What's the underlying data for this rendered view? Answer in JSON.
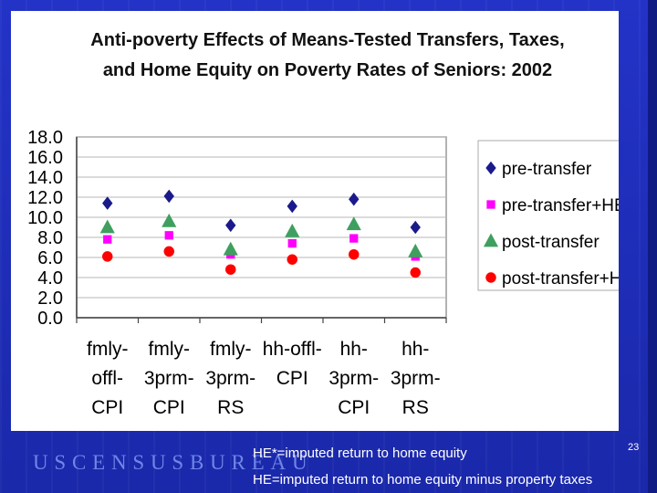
{
  "slide": {
    "footer_logo": "USCENSUSBUREAU",
    "note_he_star": "HE*=imputed return to home equity",
    "note_he": "HE=imputed return to home equity minus property taxes",
    "slide_number": "23"
  },
  "chart_data": {
    "type": "scatter",
    "title_lines": [
      "Anti-poverty Effects of Means-Tested Transfers, Taxes,",
      "and Home Equity on Poverty Rates of Seniors: 2002"
    ],
    "categories": [
      [
        "fmly-",
        "offl-",
        "CPI"
      ],
      [
        "fmly-",
        "3prm-",
        "CPI"
      ],
      [
        "fmly-",
        "3prm-",
        "RS"
      ],
      [
        "hh-offl-",
        "CPI"
      ],
      [
        "hh-",
        "3prm-",
        "CPI"
      ],
      [
        "hh-",
        "3prm-",
        "RS"
      ]
    ],
    "y_ticks": [
      "0.0",
      "2.0",
      "4.0",
      "6.0",
      "8.0",
      "10.0",
      "12.0",
      "14.0",
      "16.0",
      "18.0"
    ],
    "ylim": [
      0,
      18
    ],
    "grid": true,
    "legend_position": "right",
    "series": [
      {
        "name": "pre-transfer",
        "marker": "diamond",
        "color": "#1a1a8c",
        "values": [
          11.4,
          12.1,
          9.2,
          11.1,
          11.8,
          9.0
        ]
      },
      {
        "name": "pre-transfer+HE*",
        "marker": "square",
        "color": "#ff00ff",
        "values": [
          7.8,
          8.2,
          6.3,
          7.4,
          7.9,
          6.1
        ]
      },
      {
        "name": "post-transfer",
        "marker": "triangle",
        "color": "#3f9f5f",
        "values": [
          9.0,
          9.6,
          6.8,
          8.6,
          9.3,
          6.6
        ]
      },
      {
        "name": "post-transfer+HE",
        "marker": "circle",
        "color": "#ff0000",
        "values": [
          6.1,
          6.6,
          4.8,
          5.8,
          6.3,
          4.5
        ]
      }
    ]
  }
}
